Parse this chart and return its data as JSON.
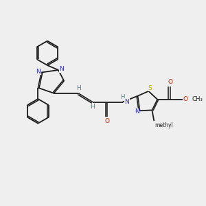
{
  "bg": "#efefef",
  "bc": "#1a1a1a",
  "nc": "#2828cc",
  "sc": "#b0b000",
  "oc": "#cc2200",
  "hc": "#3a8888",
  "lw": 1.3,
  "dlw": 1.1,
  "fs": 7.0,
  "r_hex": 0.62,
  "xlim": [
    0,
    10
  ],
  "ylim": [
    0,
    10
  ]
}
